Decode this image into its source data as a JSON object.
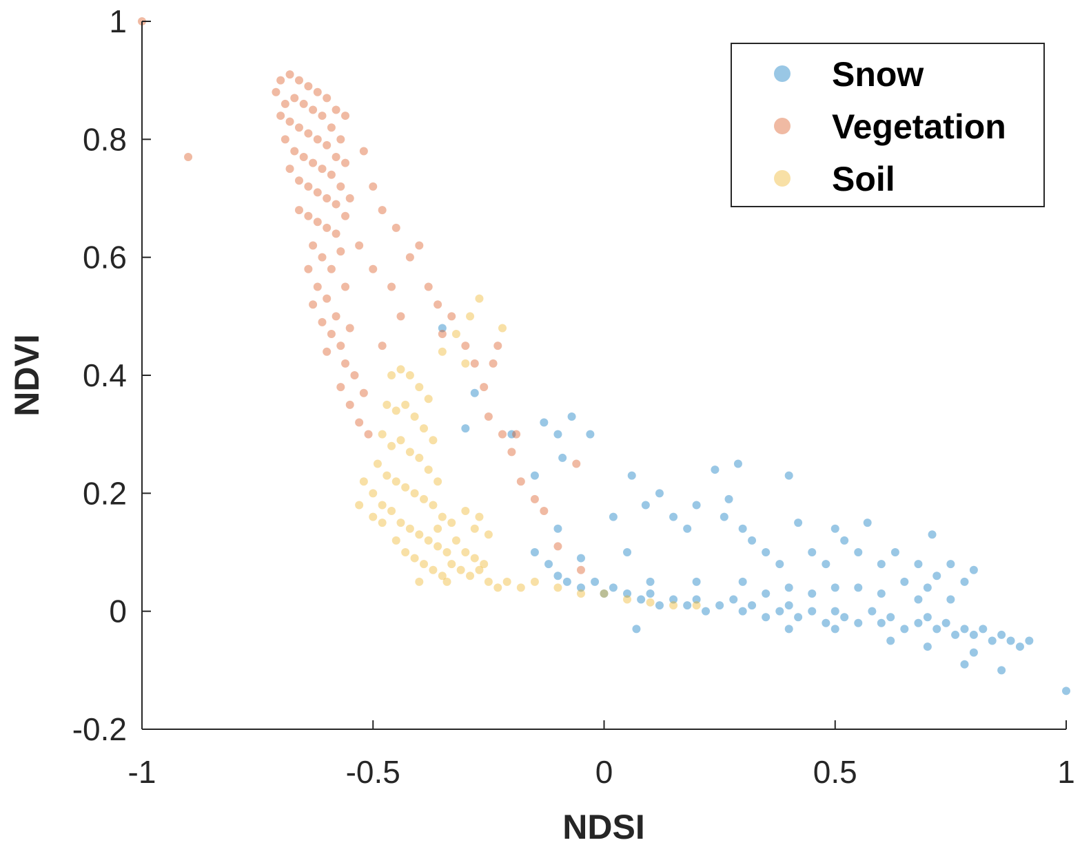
{
  "chart_data": {
    "type": "scatter",
    "title": "",
    "xlabel": "NDSI",
    "ylabel": "NDVI",
    "xlim": [
      -1,
      1
    ],
    "ylim": [
      -0.2,
      1
    ],
    "xticks": [
      -1,
      -0.5,
      0,
      0.5,
      1
    ],
    "xtick_labels": [
      "-1",
      "-0.5",
      "0",
      "0.5",
      "1"
    ],
    "yticks": [
      -0.2,
      0,
      0.2,
      0.4,
      0.6,
      0.8,
      1
    ],
    "ytick_labels": [
      "-0.2",
      "0",
      "0.2",
      "0.4",
      "0.6",
      "0.8",
      "1"
    ],
    "grid": false,
    "legend_position": "top-right",
    "marker_alpha": 0.4,
    "series": [
      {
        "name": "Snow",
        "color": "#0072BD",
        "points": [
          [
            -0.15,
            0.1
          ],
          [
            -0.12,
            0.08
          ],
          [
            -0.1,
            0.06
          ],
          [
            -0.08,
            0.05
          ],
          [
            -0.05,
            0.04
          ],
          [
            -0.02,
            0.05
          ],
          [
            0.0,
            0.03
          ],
          [
            0.02,
            0.04
          ],
          [
            0.05,
            0.03
          ],
          [
            0.08,
            0.02
          ],
          [
            0.1,
            0.03
          ],
          [
            0.12,
            0.01
          ],
          [
            0.15,
            0.02
          ],
          [
            0.18,
            0.01
          ],
          [
            0.2,
            0.02
          ],
          [
            0.22,
            0.0
          ],
          [
            0.25,
            0.01
          ],
          [
            0.28,
            0.02
          ],
          [
            0.3,
            0.0
          ],
          [
            0.32,
            0.01
          ],
          [
            0.35,
            -0.01
          ],
          [
            0.38,
            0.0
          ],
          [
            0.4,
            0.01
          ],
          [
            0.42,
            -0.01
          ],
          [
            0.45,
            0.0
          ],
          [
            0.48,
            -0.02
          ],
          [
            0.5,
            0.0
          ],
          [
            0.52,
            -0.01
          ],
          [
            0.55,
            -0.02
          ],
          [
            0.58,
            0.0
          ],
          [
            0.6,
            -0.02
          ],
          [
            0.62,
            -0.01
          ],
          [
            0.65,
            -0.03
          ],
          [
            0.68,
            -0.02
          ],
          [
            0.7,
            -0.01
          ],
          [
            0.72,
            -0.03
          ],
          [
            0.74,
            -0.02
          ],
          [
            0.76,
            -0.04
          ],
          [
            0.78,
            -0.03
          ],
          [
            0.8,
            -0.04
          ],
          [
            0.82,
            -0.03
          ],
          [
            0.84,
            -0.05
          ],
          [
            0.86,
            -0.04
          ],
          [
            0.88,
            -0.05
          ],
          [
            0.9,
            -0.06
          ],
          [
            0.92,
            -0.05
          ],
          [
            0.6,
            0.03
          ],
          [
            0.65,
            0.05
          ],
          [
            0.7,
            0.04
          ],
          [
            0.72,
            0.06
          ],
          [
            0.75,
            0.02
          ],
          [
            0.68,
            0.02
          ],
          [
            0.55,
            0.04
          ],
          [
            0.45,
            0.03
          ],
          [
            0.5,
            0.04
          ],
          [
            0.4,
            0.04
          ],
          [
            0.3,
            0.05
          ],
          [
            0.2,
            0.05
          ],
          [
            0.1,
            0.05
          ],
          [
            0.35,
            0.03
          ],
          [
            0.62,
            -0.05
          ],
          [
            0.7,
            -0.06
          ],
          [
            0.8,
            -0.07
          ],
          [
            0.5,
            -0.03
          ],
          [
            0.4,
            -0.03
          ],
          [
            -0.13,
            0.32
          ],
          [
            -0.1,
            0.3
          ],
          [
            -0.07,
            0.33
          ],
          [
            -0.03,
            0.3
          ],
          [
            -0.09,
            0.26
          ],
          [
            -0.2,
            0.3
          ],
          [
            -0.15,
            0.23
          ],
          [
            -0.1,
            0.14
          ],
          [
            -0.05,
            0.09
          ],
          [
            0.02,
            0.16
          ],
          [
            0.05,
            0.1
          ],
          [
            0.06,
            0.23
          ],
          [
            0.09,
            0.18
          ],
          [
            0.12,
            0.2
          ],
          [
            0.15,
            0.16
          ],
          [
            0.18,
            0.14
          ],
          [
            0.2,
            0.18
          ],
          [
            0.24,
            0.24
          ],
          [
            0.27,
            0.19
          ],
          [
            0.29,
            0.25
          ],
          [
            0.3,
            0.14
          ],
          [
            0.32,
            0.12
          ],
          [
            0.35,
            0.1
          ],
          [
            0.4,
            0.23
          ],
          [
            0.42,
            0.15
          ],
          [
            0.45,
            0.1
          ],
          [
            0.5,
            0.14
          ],
          [
            0.52,
            0.12
          ],
          [
            0.55,
            0.1
          ],
          [
            0.57,
            0.15
          ],
          [
            0.6,
            0.08
          ],
          [
            0.63,
            0.1
          ],
          [
            0.68,
            0.08
          ],
          [
            0.71,
            0.13
          ],
          [
            0.75,
            0.08
          ],
          [
            0.78,
            0.05
          ],
          [
            0.8,
            0.07
          ],
          [
            0.26,
            0.16
          ],
          [
            0.38,
            0.08
          ],
          [
            0.48,
            0.08
          ],
          [
            -0.28,
            0.37
          ],
          [
            -0.3,
            0.31
          ],
          [
            -0.35,
            0.48
          ],
          [
            1.0,
            -0.135
          ],
          [
            0.86,
            -0.1
          ],
          [
            0.78,
            -0.09
          ],
          [
            0.07,
            -0.03
          ]
        ]
      },
      {
        "name": "Vegetation",
        "color": "#D95319",
        "points": [
          [
            -0.7,
            0.9
          ],
          [
            -0.68,
            0.91
          ],
          [
            -0.66,
            0.9
          ],
          [
            -0.64,
            0.89
          ],
          [
            -0.62,
            0.88
          ],
          [
            -0.6,
            0.87
          ],
          [
            -0.58,
            0.85
          ],
          [
            -0.56,
            0.84
          ],
          [
            -0.71,
            0.88
          ],
          [
            -0.69,
            0.86
          ],
          [
            -0.67,
            0.87
          ],
          [
            -0.65,
            0.86
          ],
          [
            -0.63,
            0.85
          ],
          [
            -0.61,
            0.84
          ],
          [
            -0.59,
            0.82
          ],
          [
            -0.57,
            0.8
          ],
          [
            -0.7,
            0.84
          ],
          [
            -0.68,
            0.83
          ],
          [
            -0.66,
            0.82
          ],
          [
            -0.64,
            0.81
          ],
          [
            -0.62,
            0.8
          ],
          [
            -0.6,
            0.79
          ],
          [
            -0.58,
            0.77
          ],
          [
            -0.56,
            0.76
          ],
          [
            -0.69,
            0.8
          ],
          [
            -0.67,
            0.78
          ],
          [
            -0.65,
            0.77
          ],
          [
            -0.63,
            0.76
          ],
          [
            -0.61,
            0.75
          ],
          [
            -0.59,
            0.74
          ],
          [
            -0.57,
            0.72
          ],
          [
            -0.55,
            0.7
          ],
          [
            -0.68,
            0.75
          ],
          [
            -0.66,
            0.73
          ],
          [
            -0.64,
            0.72
          ],
          [
            -0.62,
            0.71
          ],
          [
            -0.6,
            0.7
          ],
          [
            -0.58,
            0.69
          ],
          [
            -0.56,
            0.67
          ],
          [
            -0.66,
            0.68
          ],
          [
            -0.64,
            0.67
          ],
          [
            -0.62,
            0.66
          ],
          [
            -0.6,
            0.65
          ],
          [
            -0.58,
            0.64
          ],
          [
            -0.63,
            0.62
          ],
          [
            -0.61,
            0.6
          ],
          [
            -0.59,
            0.58
          ],
          [
            -0.57,
            0.61
          ],
          [
            -0.64,
            0.58
          ],
          [
            -0.62,
            0.55
          ],
          [
            -0.6,
            0.53
          ],
          [
            -0.58,
            0.5
          ],
          [
            -0.56,
            0.55
          ],
          [
            -0.55,
            0.48
          ],
          [
            -0.57,
            0.45
          ],
          [
            -0.59,
            0.47
          ],
          [
            -0.61,
            0.49
          ],
          [
            -0.63,
            0.52
          ],
          [
            -0.56,
            0.42
          ],
          [
            -0.54,
            0.4
          ],
          [
            -0.52,
            0.37
          ],
          [
            -0.55,
            0.35
          ],
          [
            -0.53,
            0.32
          ],
          [
            -0.51,
            0.3
          ],
          [
            -0.57,
            0.38
          ],
          [
            -0.6,
            0.44
          ],
          [
            -0.52,
            0.78
          ],
          [
            -0.5,
            0.72
          ],
          [
            -0.48,
            0.68
          ],
          [
            -0.45,
            0.65
          ],
          [
            -0.42,
            0.6
          ],
          [
            -0.4,
            0.62
          ],
          [
            -0.38,
            0.55
          ],
          [
            -0.36,
            0.52
          ],
          [
            -0.35,
            0.47
          ],
          [
            -0.33,
            0.5
          ],
          [
            -0.3,
            0.45
          ],
          [
            -0.28,
            0.42
          ],
          [
            -0.26,
            0.38
          ],
          [
            -0.24,
            0.42
          ],
          [
            -0.23,
            0.45
          ],
          [
            -0.25,
            0.33
          ],
          [
            -0.22,
            0.3
          ],
          [
            -0.2,
            0.27
          ],
          [
            -0.19,
            0.3
          ],
          [
            -0.18,
            0.22
          ],
          [
            -0.15,
            0.19
          ],
          [
            -0.13,
            0.17
          ],
          [
            -0.1,
            0.11
          ],
          [
            -0.06,
            0.25
          ],
          [
            -0.05,
            0.07
          ],
          [
            -0.46,
            0.55
          ],
          [
            -0.44,
            0.5
          ],
          [
            -0.5,
            0.58
          ],
          [
            -0.53,
            0.62
          ],
          [
            -0.48,
            0.45
          ],
          [
            -1.0,
            1.0
          ],
          [
            -0.9,
            0.77
          ]
        ]
      },
      {
        "name": "Soil",
        "color": "#EDB120",
        "points": [
          [
            -0.46,
            0.4
          ],
          [
            -0.44,
            0.41
          ],
          [
            -0.42,
            0.4
          ],
          [
            -0.4,
            0.38
          ],
          [
            -0.38,
            0.36
          ],
          [
            -0.47,
            0.35
          ],
          [
            -0.45,
            0.34
          ],
          [
            -0.43,
            0.35
          ],
          [
            -0.41,
            0.33
          ],
          [
            -0.39,
            0.31
          ],
          [
            -0.37,
            0.29
          ],
          [
            -0.48,
            0.3
          ],
          [
            -0.46,
            0.28
          ],
          [
            -0.44,
            0.29
          ],
          [
            -0.42,
            0.27
          ],
          [
            -0.4,
            0.26
          ],
          [
            -0.38,
            0.24
          ],
          [
            -0.36,
            0.22
          ],
          [
            -0.49,
            0.25
          ],
          [
            -0.47,
            0.23
          ],
          [
            -0.45,
            0.22
          ],
          [
            -0.43,
            0.21
          ],
          [
            -0.41,
            0.2
          ],
          [
            -0.39,
            0.19
          ],
          [
            -0.37,
            0.18
          ],
          [
            -0.35,
            0.16
          ],
          [
            -0.5,
            0.2
          ],
          [
            -0.48,
            0.18
          ],
          [
            -0.46,
            0.17
          ],
          [
            -0.44,
            0.15
          ],
          [
            -0.42,
            0.14
          ],
          [
            -0.4,
            0.13
          ],
          [
            -0.38,
            0.12
          ],
          [
            -0.36,
            0.11
          ],
          [
            -0.34,
            0.1
          ],
          [
            -0.32,
            0.12
          ],
          [
            -0.45,
            0.12
          ],
          [
            -0.43,
            0.1
          ],
          [
            -0.41,
            0.09
          ],
          [
            -0.39,
            0.08
          ],
          [
            -0.37,
            0.07
          ],
          [
            -0.35,
            0.06
          ],
          [
            -0.33,
            0.08
          ],
          [
            -0.31,
            0.07
          ],
          [
            -0.29,
            0.06
          ],
          [
            -0.27,
            0.07
          ],
          [
            -0.25,
            0.05
          ],
          [
            -0.23,
            0.04
          ],
          [
            -0.21,
            0.05
          ],
          [
            -0.3,
            0.1
          ],
          [
            -0.28,
            0.09
          ],
          [
            -0.26,
            0.08
          ],
          [
            -0.34,
            0.05
          ],
          [
            -0.4,
            0.05
          ],
          [
            -0.36,
            0.14
          ],
          [
            -0.33,
            0.15
          ],
          [
            -0.3,
            0.17
          ],
          [
            -0.28,
            0.14
          ],
          [
            -0.27,
            0.53
          ],
          [
            -0.29,
            0.5
          ],
          [
            -0.32,
            0.47
          ],
          [
            -0.22,
            0.48
          ],
          [
            -0.35,
            0.44
          ],
          [
            -0.3,
            0.42
          ],
          [
            -0.52,
            0.22
          ],
          [
            -0.53,
            0.18
          ],
          [
            -0.5,
            0.16
          ],
          [
            -0.48,
            0.15
          ],
          [
            -0.18,
            0.04
          ],
          [
            -0.15,
            0.05
          ],
          [
            -0.1,
            0.04
          ],
          [
            -0.05,
            0.03
          ],
          [
            0.0,
            0.03
          ],
          [
            0.05,
            0.02
          ],
          [
            0.1,
            0.015
          ],
          [
            0.15,
            0.01
          ],
          [
            0.2,
            0.01
          ],
          [
            -0.25,
            0.13
          ],
          [
            -0.27,
            0.16
          ]
        ]
      }
    ]
  }
}
